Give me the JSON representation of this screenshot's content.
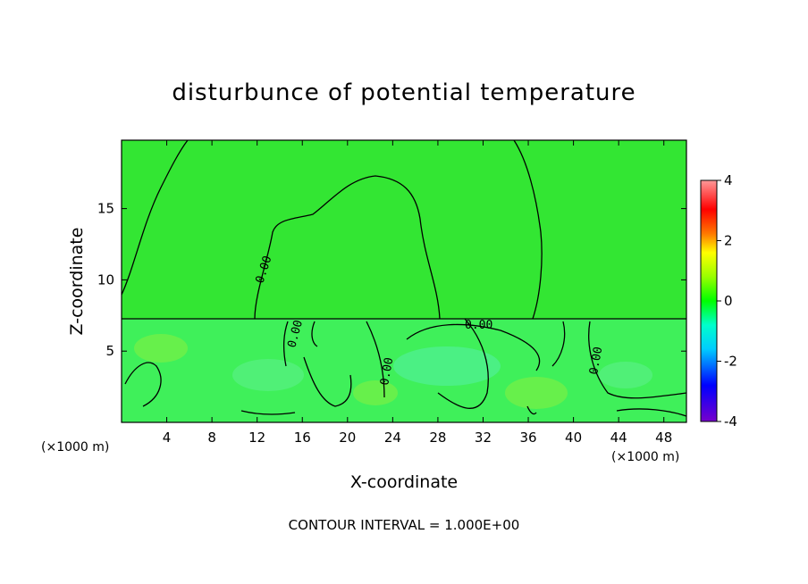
{
  "chart_data": {
    "type": "heatmap",
    "title": "disturbunce of potential temperature",
    "xlabel": "X-coordinate",
    "ylabel": "Z-coordinate",
    "x_unit": "(×1000 m)",
    "z_unit": "(×1000 m)",
    "xlim": [
      0,
      50
    ],
    "ylim": [
      0,
      19.8
    ],
    "x_ticks": [
      4,
      8,
      12,
      16,
      20,
      24,
      28,
      32,
      36,
      40,
      44,
      48
    ],
    "y_ticks": [
      5,
      10,
      15
    ],
    "colorbar": {
      "range": [
        -4,
        4
      ],
      "ticks": [
        4,
        2,
        0,
        -2,
        -4
      ],
      "colors_top_to_bottom": [
        "#ff9999",
        "#ff0000",
        "#ff7700",
        "#ffff00",
        "#99ff00",
        "#00ff00",
        "#00ffcc",
        "#00ccff",
        "#0000ff",
        "#7700cc"
      ]
    },
    "contour_labels": [
      "0.00",
      "0.00",
      "0.00",
      "0.00",
      "0.00"
    ],
    "contour_interval_text": "CONTOUR INTERVAL =  1.000E+00",
    "colors": {
      "upper_field": "#33e633",
      "lower_field": "#3ff05a",
      "contour": "#000000"
    }
  }
}
